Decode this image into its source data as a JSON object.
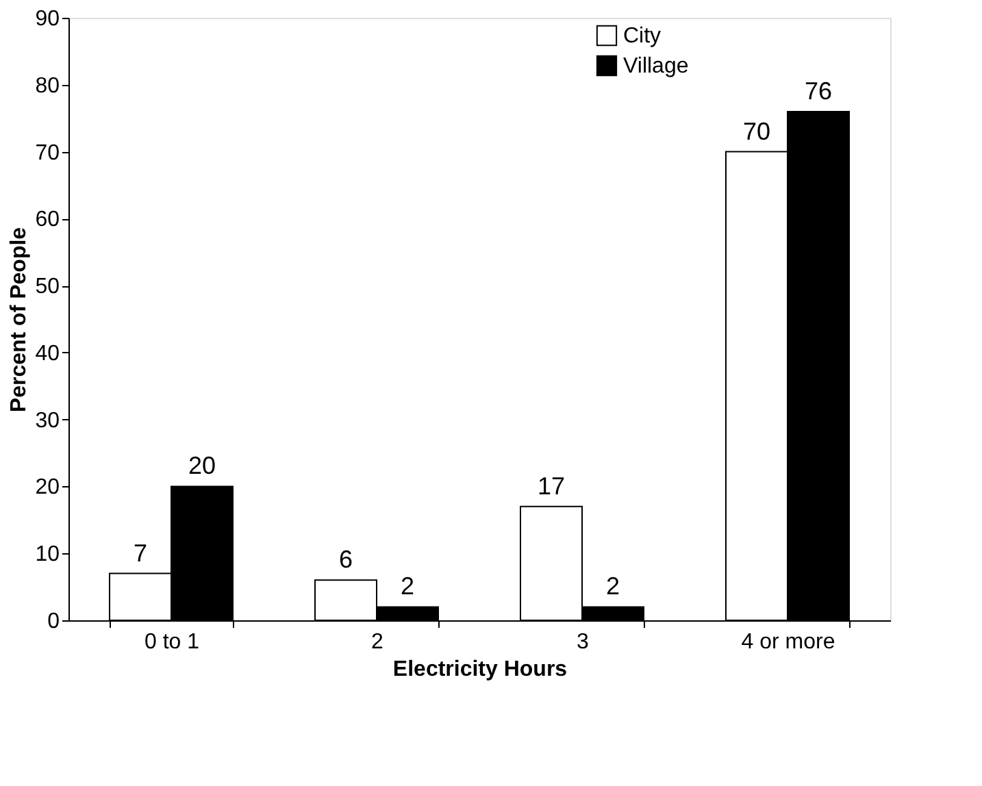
{
  "chart_data": {
    "type": "bar",
    "xlabel": "Electricity Hours",
    "ylabel": "Percent of People",
    "categories": [
      "0 to 1",
      "2",
      "3",
      "4 or more"
    ],
    "series": [
      {
        "name": "City",
        "color": "#ffffff",
        "values": [
          7,
          6,
          17,
          70
        ]
      },
      {
        "name": "Village",
        "color": "#000000",
        "values": [
          20,
          2,
          2,
          76
        ]
      }
    ],
    "ylim": [
      0,
      90
    ],
    "yticks": [
      0,
      10,
      20,
      30,
      40,
      50,
      60,
      70,
      80,
      90
    ],
    "data_labels": true,
    "grid": false,
    "legend": "top right"
  }
}
